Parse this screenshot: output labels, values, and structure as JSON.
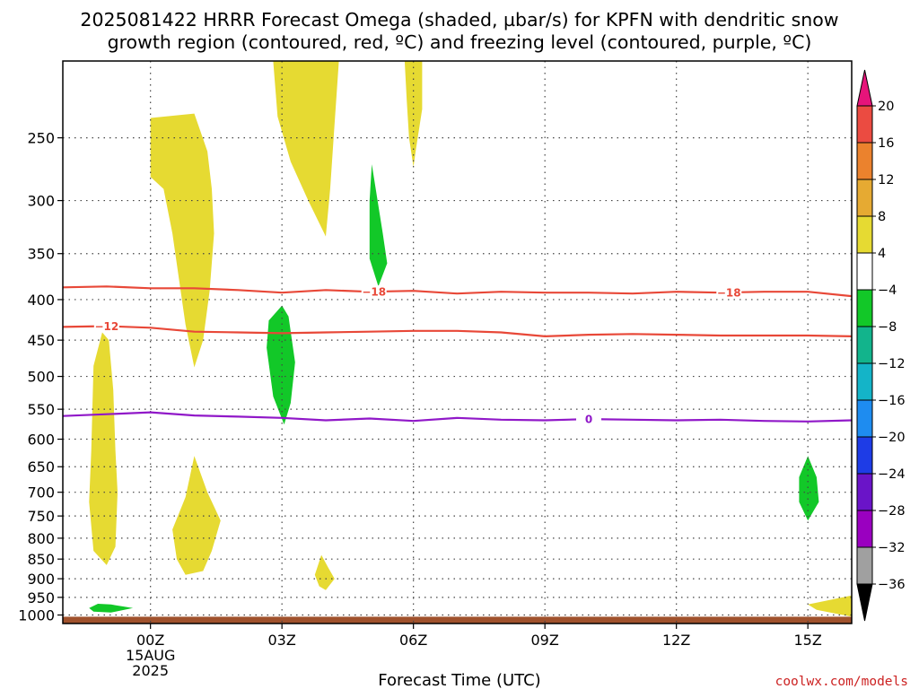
{
  "title_line1": "2025081422 HRRR Forecast Omega (shaded, µbar/s) for KPFN with dendritic snow",
  "title_line2": "growth region (contoured, red, ºC) and freezing level (contoured, purple, ºC)",
  "credit": "coolwx.com/models",
  "chart_data": {
    "type": "heatmap",
    "title": "2025081422 HRRR Forecast Omega (shaded, µbar/s) for KPFN with dendritic snow growth region (contoured, red, ºC) and freezing level (contoured, purple, ºC)",
    "xlabel": "Forecast Time (UTC)",
    "ylabel": "",
    "x_range_hours_from_00z": [
      -2,
      16
    ],
    "x_ticks": [
      {
        "hour": 0,
        "lines": [
          "00Z",
          "15AUG",
          "2025"
        ]
      },
      {
        "hour": 3,
        "lines": [
          "03Z"
        ]
      },
      {
        "hour": 6,
        "lines": [
          "06Z"
        ]
      },
      {
        "hour": 9,
        "lines": [
          "09Z"
        ]
      },
      {
        "hour": 12,
        "lines": [
          "12Z"
        ]
      },
      {
        "hour": 15,
        "lines": [
          "15Z"
        ]
      }
    ],
    "y_scale": "log-pressure",
    "y_range_mb": [
      1025,
      200
    ],
    "y_ticks": [
      250,
      300,
      350,
      400,
      450,
      500,
      550,
      600,
      650,
      700,
      750,
      800,
      850,
      900,
      950,
      1000
    ],
    "grid": true,
    "colorbar": {
      "levels": [
        -36,
        -32,
        -28,
        -24,
        -20,
        -16,
        -12,
        -8,
        -4,
        4,
        8,
        12,
        16,
        20
      ],
      "labels": [
        "20",
        "16",
        "12",
        "8",
        "4",
        "−4",
        "−8",
        "−12",
        "−16",
        "−20",
        "−24",
        "−28",
        "−32",
        "−36"
      ],
      "colors": [
        "#000000",
        "#a0a0a0",
        "#9a00c0",
        "#6a14c8",
        "#1e3ce6",
        "#1e8cf0",
        "#14b4c8",
        "#12b48c",
        "#12c828",
        "#ffffff",
        "#e6da32",
        "#e6aa32",
        "#eb822d",
        "#eb4b41",
        "#e6147a"
      ],
      "placement": "right"
    },
    "contours": [
      {
        "name": "-18",
        "color": "#e84838",
        "label": "−18",
        "points": [
          [
            -2,
            386
          ],
          [
            -1,
            385
          ],
          [
            0,
            387
          ],
          [
            1,
            387
          ],
          [
            2,
            389
          ],
          [
            3,
            392
          ],
          [
            4,
            389
          ],
          [
            5,
            391
          ],
          [
            6,
            390
          ],
          [
            7,
            393
          ],
          [
            8,
            391
          ],
          [
            9,
            392
          ],
          [
            10,
            392
          ],
          [
            11,
            393
          ],
          [
            12,
            391
          ],
          [
            13,
            392
          ],
          [
            14,
            391
          ],
          [
            15,
            391
          ],
          [
            16,
            396
          ]
        ],
        "label_hours": [
          5.1,
          13.2
        ]
      },
      {
        "name": "-12",
        "color": "#e84838",
        "label": "−12",
        "points": [
          [
            -2,
            433
          ],
          [
            -1,
            432
          ],
          [
            0,
            434
          ],
          [
            1,
            439
          ],
          [
            2,
            440
          ],
          [
            3,
            441
          ],
          [
            4,
            440
          ],
          [
            5,
            439
          ],
          [
            6,
            438
          ],
          [
            7,
            438
          ],
          [
            8,
            440
          ],
          [
            9,
            445
          ],
          [
            10,
            443
          ],
          [
            11,
            442
          ],
          [
            12,
            443
          ],
          [
            13,
            444
          ],
          [
            14,
            444
          ],
          [
            15,
            444
          ],
          [
            16,
            445
          ]
        ],
        "label_hours": [
          -1.0
        ]
      },
      {
        "name": "0",
        "color": "#9018c8",
        "label": "0",
        "points": [
          [
            -2,
            561
          ],
          [
            -1,
            558
          ],
          [
            0,
            555
          ],
          [
            1,
            560
          ],
          [
            2,
            562
          ],
          [
            3,
            564
          ],
          [
            4,
            568
          ],
          [
            5,
            565
          ],
          [
            6,
            569
          ],
          [
            7,
            564
          ],
          [
            8,
            567
          ],
          [
            9,
            568
          ],
          [
            10,
            566
          ],
          [
            11,
            567
          ],
          [
            12,
            568
          ],
          [
            13,
            567
          ],
          [
            14,
            569
          ],
          [
            15,
            570
          ],
          [
            16,
            568
          ]
        ],
        "label_hours": [
          10.0
        ]
      }
    ],
    "shaded_regions": [
      {
        "category": "4 to 8",
        "color": "#e6da32",
        "points": [
          [
            2.8,
            200
          ],
          [
            4.3,
            200
          ],
          [
            4.2,
            240
          ],
          [
            4.1,
            290
          ],
          [
            4.0,
            333
          ],
          [
            3.6,
            300
          ],
          [
            3.2,
            268
          ],
          [
            2.9,
            235
          ]
        ]
      },
      {
        "category": "4 to 8",
        "color": "#e6da32",
        "points": [
          [
            5.8,
            200
          ],
          [
            6.2,
            200
          ],
          [
            6.2,
            230
          ],
          [
            6.05,
            260
          ],
          [
            6.0,
            272
          ],
          [
            5.9,
            250
          ],
          [
            5.85,
            225
          ]
        ]
      },
      {
        "category": "4 to 8",
        "color": "#e6da32",
        "points": [
          [
            0.0,
            236
          ],
          [
            1.0,
            233
          ],
          [
            1.3,
            260
          ],
          [
            1.4,
            290
          ],
          [
            1.45,
            330
          ],
          [
            1.35,
            390
          ],
          [
            1.2,
            450
          ],
          [
            1.0,
            487
          ],
          [
            0.8,
            430
          ],
          [
            0.5,
            330
          ],
          [
            0.3,
            290
          ],
          [
            0.0,
            280
          ]
        ]
      },
      {
        "category": "4 to 8",
        "color": "#e6da32",
        "points": [
          [
            -1.3,
            485
          ],
          [
            -1.1,
            440
          ],
          [
            -0.95,
            450
          ],
          [
            -0.85,
            520
          ],
          [
            -0.8,
            620
          ],
          [
            -0.75,
            700
          ],
          [
            -0.8,
            820
          ],
          [
            -1.0,
            865
          ],
          [
            -1.3,
            830
          ],
          [
            -1.4,
            720
          ],
          [
            -1.35,
            620
          ]
        ]
      },
      {
        "category": "4 to 8",
        "color": "#e6da32",
        "points": [
          [
            0.5,
            780
          ],
          [
            0.8,
            710
          ],
          [
            1.0,
            630
          ],
          [
            1.3,
            700
          ],
          [
            1.6,
            760
          ],
          [
            1.4,
            830
          ],
          [
            1.2,
            880
          ],
          [
            0.8,
            890
          ],
          [
            0.6,
            850
          ]
        ]
      },
      {
        "category": "4 to 8",
        "color": "#e6da32",
        "points": [
          [
            3.75,
            890
          ],
          [
            3.9,
            840
          ],
          [
            4.05,
            870
          ],
          [
            4.2,
            900
          ],
          [
            4.0,
            930
          ],
          [
            3.85,
            920
          ]
        ]
      },
      {
        "category": "4 to 8",
        "color": "#e6da32",
        "points": [
          [
            15.0,
            970
          ],
          [
            16.0,
            945
          ],
          [
            16.0,
            1005
          ],
          [
            15.6,
            995
          ],
          [
            15.2,
            985
          ]
        ]
      },
      {
        "category": "-8 to -4",
        "color": "#12c828",
        "points": [
          [
            5.05,
            270
          ],
          [
            5.3,
            330
          ],
          [
            5.4,
            360
          ],
          [
            5.2,
            385
          ],
          [
            5.0,
            355
          ],
          [
            5.0,
            300
          ]
        ]
      },
      {
        "category": "-8 to -4",
        "color": "#12c828",
        "points": [
          [
            3.0,
            407
          ],
          [
            3.15,
            420
          ],
          [
            3.3,
            480
          ],
          [
            3.2,
            540
          ],
          [
            3.05,
            575
          ],
          [
            2.8,
            530
          ],
          [
            2.65,
            460
          ],
          [
            2.7,
            425
          ]
        ]
      },
      {
        "category": "-8 to -4",
        "color": "#12c828",
        "points": [
          [
            15.0,
            630
          ],
          [
            15.2,
            670
          ],
          [
            15.25,
            720
          ],
          [
            15.0,
            760
          ],
          [
            14.8,
            720
          ],
          [
            14.8,
            670
          ]
        ]
      },
      {
        "category": "-8 to -4",
        "color": "#12c828",
        "points": [
          [
            -1.4,
            980
          ],
          [
            -1.2,
            968
          ],
          [
            -0.9,
            970
          ],
          [
            -0.4,
            980
          ],
          [
            -0.9,
            993
          ],
          [
            -1.3,
            990
          ]
        ]
      }
    ],
    "ground_region": {
      "top_mb": 1005,
      "color": "#a0522d"
    }
  }
}
